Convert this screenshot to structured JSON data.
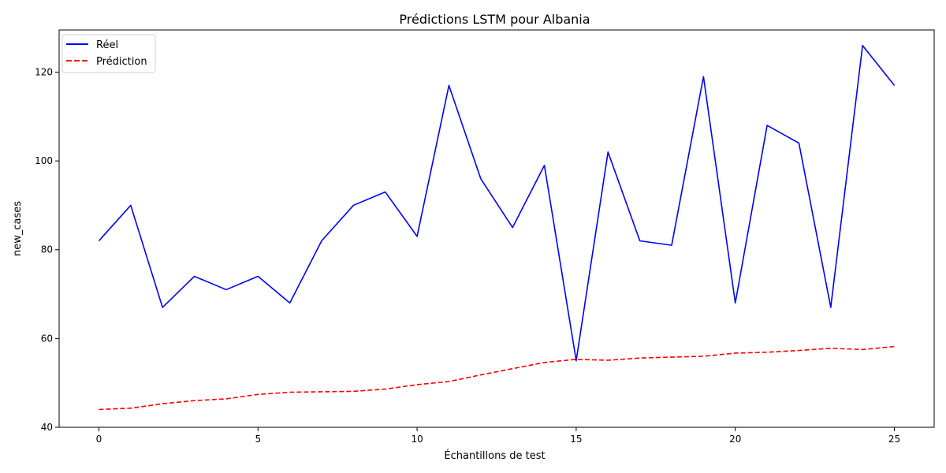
{
  "chart_data": {
    "type": "line",
    "title": "Prédictions LSTM pour Albania",
    "xlabel": "Échantillons de test",
    "ylabel": "new_cases",
    "xlim": [
      -1.25,
      26.25
    ],
    "ylim": [
      40,
      129.5
    ],
    "xticks": [
      0,
      5,
      10,
      15,
      20,
      25
    ],
    "yticks": [
      40,
      60,
      80,
      100,
      120
    ],
    "grid": false,
    "legend_position": "top-left",
    "x": [
      0,
      1,
      2,
      3,
      4,
      5,
      6,
      7,
      8,
      9,
      10,
      11,
      12,
      13,
      14,
      15,
      16,
      17,
      18,
      19,
      20,
      21,
      22,
      23,
      24,
      25
    ],
    "series": [
      {
        "name": "Réel",
        "color": "#0000ff",
        "style": "solid",
        "values": [
          82,
          90,
          67,
          74,
          71,
          74,
          68,
          82,
          90,
          93,
          83,
          117,
          96,
          85,
          99,
          55,
          102,
          82,
          81,
          119,
          68,
          108,
          104,
          67,
          126,
          117
        ]
      },
      {
        "name": "Prédiction",
        "color": "#ff0000",
        "style": "dashed",
        "values": [
          44.0,
          44.3,
          45.3,
          46.0,
          46.4,
          47.4,
          47.9,
          48.0,
          48.1,
          48.6,
          49.6,
          50.3,
          51.8,
          53.2,
          54.6,
          55.3,
          55.1,
          55.6,
          55.8,
          56.0,
          56.7,
          56.9,
          57.3,
          57.8,
          57.5,
          58.2
        ]
      }
    ]
  }
}
